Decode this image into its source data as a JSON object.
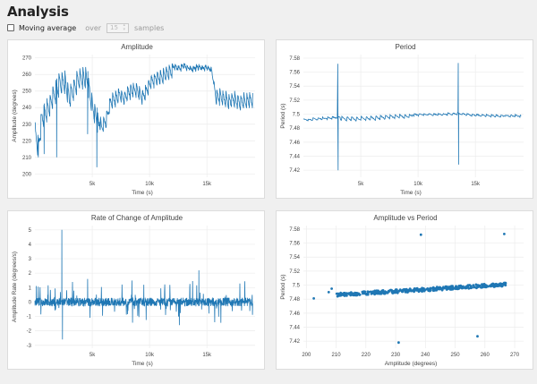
{
  "header": {
    "title": "Analysis"
  },
  "controls": {
    "moving_average_label": "Moving average",
    "over_label": "over",
    "samples_value": "15",
    "samples_label": "samples"
  },
  "colors": {
    "series": "#1f77b4"
  },
  "chart_data": [
    {
      "type": "line",
      "title": "Amplitude",
      "xlabel": "Time (s)",
      "ylabel": "Amplitude (degrees)",
      "xlim": [
        0,
        19200
      ],
      "ylim": [
        198,
        272
      ],
      "x_ticks": [
        5000,
        10000,
        15000
      ],
      "x_tick_labels": [
        "5k",
        "10k",
        "15k"
      ],
      "y_ticks": [
        200,
        210,
        220,
        230,
        240,
        250,
        260,
        270
      ],
      "anchors": [
        [
          0,
          232
        ],
        [
          300,
          222
        ],
        [
          600,
          240
        ],
        [
          1000,
          245
        ],
        [
          1400,
          250
        ],
        [
          1800,
          256
        ],
        [
          2200,
          262
        ],
        [
          2600,
          263
        ],
        [
          3000,
          252
        ],
        [
          3400,
          258
        ],
        [
          3800,
          264
        ],
        [
          4200,
          266
        ],
        [
          4600,
          262
        ],
        [
          5000,
          248
        ],
        [
          5400,
          240
        ],
        [
          5800,
          232
        ],
        [
          6200,
          236
        ],
        [
          6600,
          248
        ],
        [
          7000,
          250
        ],
        [
          7400,
          252
        ],
        [
          7800,
          250
        ],
        [
          8200,
          254
        ],
        [
          8600,
          255
        ],
        [
          9000,
          254
        ],
        [
          9400,
          251
        ],
        [
          9800,
          256
        ],
        [
          10200,
          260
        ],
        [
          10600,
          262
        ],
        [
          11000,
          263
        ],
        [
          11400,
          265
        ],
        [
          11800,
          266
        ],
        [
          12200,
          266
        ],
        [
          12600,
          265
        ],
        [
          13000,
          267
        ],
        [
          13400,
          265
        ],
        [
          13800,
          265
        ],
        [
          14200,
          266
        ],
        [
          14600,
          265
        ],
        [
          15000,
          266
        ],
        [
          15400,
          264
        ],
        [
          15800,
          251
        ],
        [
          16200,
          251
        ],
        [
          16600,
          250
        ],
        [
          17000,
          249
        ],
        [
          17400,
          250
        ],
        [
          17800,
          248
        ],
        [
          18200,
          249
        ],
        [
          18600,
          249
        ],
        [
          19000,
          250
        ]
      ],
      "spikes": [
        [
          5400,
          204
        ],
        [
          4600,
          224
        ],
        [
          300,
          210
        ],
        [
          800,
          212
        ],
        [
          1900,
          210
        ]
      ],
      "series": [
        {
          "name": "",
          "color": "#1f77b4"
        }
      ]
    },
    {
      "type": "line",
      "title": "Period",
      "xlabel": "Time (s)",
      "ylabel": "Period (s)",
      "xlim": [
        0,
        19200
      ],
      "ylim": [
        7.41,
        7.585
      ],
      "x_ticks": [
        5000,
        10000,
        15000
      ],
      "x_tick_labels": [
        "5k",
        "10k",
        "15k"
      ],
      "y_ticks": [
        7.42,
        7.44,
        7.46,
        7.48,
        7.5,
        7.52,
        7.54,
        7.56,
        7.58
      ],
      "y_tick_labels": [
        "7.42",
        "7.44",
        "7.46",
        "7.48",
        "7.5",
        "7.52",
        "7.54",
        "7.56",
        "7.58"
      ],
      "anchors": [
        [
          0,
          7.493
        ],
        [
          1500,
          7.495
        ],
        [
          3000,
          7.497
        ],
        [
          4500,
          7.496
        ],
        [
          6000,
          7.497
        ],
        [
          7500,
          7.499
        ],
        [
          9000,
          7.5
        ],
        [
          10500,
          7.501
        ],
        [
          12000,
          7.501
        ],
        [
          13500,
          7.502
        ],
        [
          15000,
          7.5
        ],
        [
          16500,
          7.499
        ],
        [
          18000,
          7.499
        ],
        [
          19000,
          7.499
        ]
      ],
      "spikes": [
        [
          3000,
          7.572
        ],
        [
          3030,
          7.42
        ],
        [
          13500,
          7.573
        ],
        [
          13530,
          7.428
        ]
      ],
      "series": [
        {
          "name": "",
          "color": "#1f77b4"
        }
      ]
    },
    {
      "type": "line",
      "title": "Rate of Change of Amplitude",
      "xlabel": "Time (s)",
      "ylabel": "Amplitude Rate (degrees/s)",
      "xlim": [
        0,
        19200
      ],
      "ylim": [
        -3.2,
        5.3
      ],
      "x_ticks": [
        5000,
        10000,
        15000
      ],
      "x_tick_labels": [
        "5k",
        "10k",
        "15k"
      ],
      "y_ticks": [
        -3,
        -2,
        -1,
        0,
        1,
        2,
        3,
        4,
        5
      ],
      "spikes": [
        [
          2350,
          5.0
        ],
        [
          2400,
          -2.6
        ],
        [
          4600,
          1.6
        ],
        [
          14300,
          2.2
        ],
        [
          12600,
          -1.6
        ],
        [
          9500,
          1.2
        ]
      ],
      "series": [
        {
          "name": "",
          "color": "#1f77b4"
        }
      ]
    },
    {
      "type": "scatter",
      "title": "Amplitude vs Period",
      "xlabel": "Amplitude (degrees)",
      "ylabel": "Period (s)",
      "xlim": [
        199,
        273
      ],
      "ylim": [
        7.41,
        7.585
      ],
      "x_ticks": [
        200,
        210,
        220,
        230,
        240,
        250,
        260,
        270
      ],
      "y_ticks": [
        7.42,
        7.44,
        7.46,
        7.48,
        7.5,
        7.52,
        7.54,
        7.56,
        7.58
      ],
      "y_tick_labels": [
        "7.42",
        "7.44",
        "7.46",
        "7.48",
        "7.5",
        "7.52",
        "7.54",
        "7.56",
        "7.58"
      ],
      "outliers": [
        [
          202.5,
          7.481
        ],
        [
          207.5,
          7.49
        ],
        [
          208.5,
          7.495
        ],
        [
          238.5,
          7.572
        ],
        [
          266.5,
          7.573
        ],
        [
          231,
          7.418
        ],
        [
          257.5,
          7.427
        ],
        [
          210.5,
          7.484
        ],
        [
          212,
          7.486
        ]
      ],
      "trend": [
        [
          210,
          7.486
        ],
        [
          267,
          7.501
        ]
      ],
      "series": [
        {
          "name": "",
          "color": "#1f77b4"
        }
      ]
    }
  ]
}
